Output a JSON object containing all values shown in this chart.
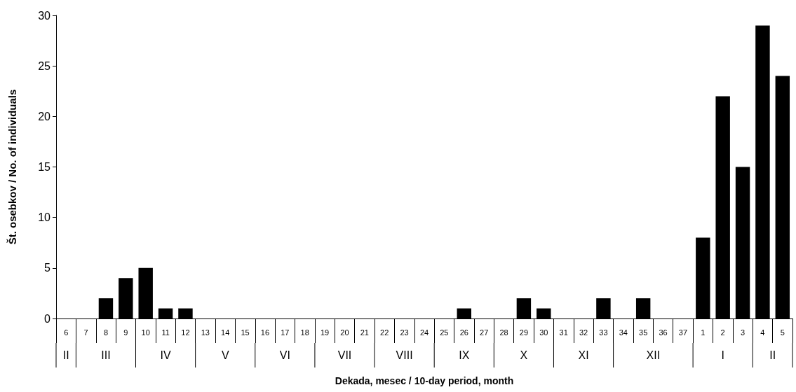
{
  "chart_data": {
    "type": "bar",
    "xlabel": "Dekada, mesec / 10-day period, month",
    "ylabel": "Št. osebkov / No. of individuals",
    "categories": [
      "6",
      "7",
      "8",
      "9",
      "10",
      "11",
      "12",
      "13",
      "14",
      "15",
      "16",
      "17",
      "18",
      "19",
      "20",
      "21",
      "22",
      "23",
      "24",
      "25",
      "26",
      "27",
      "28",
      "29",
      "30",
      "31",
      "32",
      "33",
      "34",
      "35",
      "36",
      "37",
      "1",
      "2",
      "3",
      "4",
      "5"
    ],
    "values": [
      0,
      0,
      2,
      4,
      5,
      1,
      1,
      0,
      0,
      0,
      0,
      0,
      0,
      0,
      0,
      0,
      0,
      0,
      0,
      0,
      1,
      0,
      0,
      2,
      1,
      0,
      0,
      2,
      0,
      2,
      0,
      0,
      8,
      22,
      15,
      29,
      24
    ],
    "color": "#000000",
    "ylim": [
      0,
      30
    ],
    "yticks": [
      0,
      5,
      10,
      15,
      20,
      25,
      30
    ],
    "grid": false,
    "annotations": [
      "II",
      "III",
      "IV",
      "V",
      "VI",
      "VII",
      "VIII",
      "IX",
      "X",
      "XI",
      "XII",
      "I",
      "II"
    ]
  }
}
